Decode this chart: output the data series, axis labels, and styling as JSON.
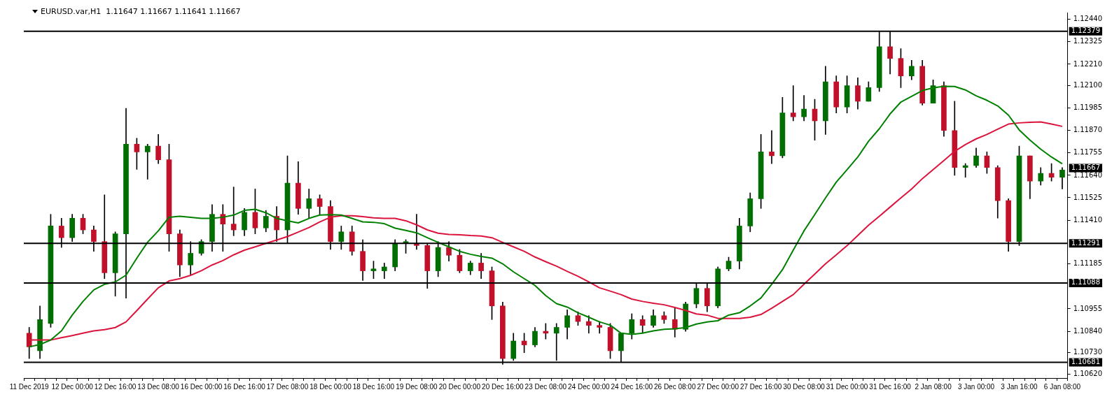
{
  "chart_data": {
    "type": "candlestick",
    "title": "EURUSD.var,H1  1.11647 1.11667 1.11641 1.11667",
    "categories": [
      "11 Dec 2019",
      null,
      null,
      null,
      "12 Dec 00:00",
      null,
      null,
      null,
      "12 Dec 16:00",
      null,
      null,
      null,
      "13 Dec 08:00",
      null,
      null,
      null,
      "16 Dec 00:00",
      null,
      null,
      null,
      "16 Dec 16:00",
      null,
      null,
      null,
      "17 Dec 08:00",
      null,
      null,
      null,
      "18 Dec 00:00",
      null,
      null,
      null,
      "18 Dec 16:00",
      null,
      null,
      null,
      "19 Dec 08:00",
      null,
      null,
      null,
      "20 Dec 00:00",
      null,
      null,
      null,
      "20 Dec 16:00",
      null,
      null,
      null,
      "23 Dec 08:00",
      null,
      null,
      null,
      "24 Dec 00:00",
      null,
      null,
      null,
      "24 Dec 16:00",
      null,
      null,
      null,
      "26 Dec 08:00",
      null,
      null,
      null,
      "27 Dec 00:00",
      null,
      null,
      null,
      "27 Dec 16:00",
      null,
      null,
      null,
      "30 Dec 08:00",
      null,
      null,
      null,
      "31 Dec 00:00",
      null,
      null,
      null,
      "31 Dec 16:00",
      null,
      null,
      null,
      "2 Jan 08:00",
      null,
      null,
      null,
      "3 Jan 00:00",
      null,
      null,
      null,
      "3 Jan 16:00",
      null,
      null,
      null,
      "6 Jan 08:00"
    ],
    "ohlc": [
      [
        1.1083,
        1.1086,
        1.107,
        1.1076
      ],
      [
        1.1074,
        1.1097,
        1.107,
        1.109
      ],
      [
        1.1088,
        1.1144,
        1.1086,
        1.1138
      ],
      [
        1.1138,
        1.1142,
        1.1127,
        1.1132
      ],
      [
        1.1132,
        1.1144,
        1.113,
        1.1142
      ],
      [
        1.1142,
        1.1144,
        1.1134,
        1.1136
      ],
      [
        1.1136,
        1.1138,
        1.1125,
        1.113
      ],
      [
        1.113,
        1.1154,
        1.1111,
        1.1114
      ],
      [
        1.1114,
        1.1135,
        1.1102,
        1.1134
      ],
      [
        1.1134,
        1.11984,
        1.1101,
        1.118
      ],
      [
        1.118,
        1.1183,
        1.1167,
        1.1176
      ],
      [
        1.1176,
        1.118,
        1.1162,
        1.1179
      ],
      [
        1.1179,
        1.1185,
        1.117,
        1.1172
      ],
      [
        1.1172,
        1.118,
        1.1125,
        1.1134
      ],
      [
        1.1134,
        1.1136,
        1.1112,
        1.1118
      ],
      [
        1.1118,
        1.113,
        1.1113,
        1.1124
      ],
      [
        1.1124,
        1.1131,
        1.1123,
        1.113
      ],
      [
        1.113,
        1.1149,
        1.1125,
        1.1144
      ],
      [
        1.1144,
        1.1149,
        1.1125,
        1.1139
      ],
      [
        1.1139,
        1.1158,
        1.1133,
        1.1136
      ],
      [
        1.1136,
        1.1147,
        1.1133,
        1.1145
      ],
      [
        1.1145,
        1.1157,
        1.1134,
        1.1137
      ],
      [
        1.1137,
        1.1146,
        1.1135,
        1.1143
      ],
      [
        1.1143,
        1.1148,
        1.113,
        1.1136
      ],
      [
        1.1136,
        1.1174,
        1.1129,
        1.116
      ],
      [
        1.116,
        1.1171,
        1.1144,
        1.1147
      ],
      [
        1.1147,
        1.1157,
        1.1142,
        1.1152
      ],
      [
        1.1152,
        1.1154,
        1.1144,
        1.1148
      ],
      [
        1.1148,
        1.1151,
        1.1126,
        1.113
      ],
      [
        1.113,
        1.1138,
        1.1126,
        1.1135
      ],
      [
        1.1135,
        1.1138,
        1.1123,
        1.1125
      ],
      [
        1.1125,
        1.1131,
        1.111,
        1.1115
      ],
      [
        1.1115,
        1.112,
        1.1111,
        1.1116
      ],
      [
        1.1115,
        1.1119,
        1.1111,
        1.1117
      ],
      [
        1.1117,
        1.1131,
        1.1115,
        1.1129
      ],
      [
        1.1129,
        1.1131,
        1.1124,
        1.113
      ],
      [
        1.1129,
        1.1144,
        1.1126,
        1.1128
      ],
      [
        1.1128,
        1.1129,
        1.1106,
        1.1115
      ],
      [
        1.1115,
        1.113,
        1.1112,
        1.1127
      ],
      [
        1.1127,
        1.113,
        1.112,
        1.1123
      ],
      [
        1.1123,
        1.1126,
        1.1114,
        1.1115
      ],
      [
        1.1115,
        1.112,
        1.1113,
        1.1119
      ],
      [
        1.1119,
        1.1124,
        1.1111,
        1.1115
      ],
      [
        1.1115,
        1.1117,
        1.109,
        1.1097
      ],
      [
        1.1097,
        1.1099,
        1.1067,
        1.107
      ],
      [
        1.107,
        1.1083,
        1.1069,
        1.1079
      ],
      [
        1.1079,
        1.1083,
        1.1073,
        1.1077
      ],
      [
        1.1077,
        1.1086,
        1.1076,
        1.1084
      ],
      [
        1.1084,
        1.1088,
        1.108,
        1.1083
      ],
      [
        1.1083,
        1.1088,
        1.1069,
        1.1086
      ],
      [
        1.1086,
        1.1095,
        1.108,
        1.1092
      ],
      [
        1.1092,
        1.1094,
        1.1087,
        1.1089
      ],
      [
        1.1089,
        1.1092,
        1.1083,
        1.1087
      ],
      [
        1.1087,
        1.1089,
        1.1083,
        1.1086
      ],
      [
        1.1086,
        1.1088,
        1.107,
        1.1074
      ],
      [
        1.1074,
        1.1083,
        1.1068,
        1.1083
      ],
      [
        1.1083,
        1.1093,
        1.108,
        1.109
      ],
      [
        1.109,
        1.1092,
        1.1083,
        1.1087
      ],
      [
        1.1087,
        1.1095,
        1.1086,
        1.1092
      ],
      [
        1.1092,
        1.1094,
        1.1088,
        1.109
      ],
      [
        1.109,
        1.1096,
        1.1081,
        1.1085
      ],
      [
        1.1085,
        1.1099,
        1.1084,
        1.1098
      ],
      [
        1.1098,
        1.1109,
        1.1096,
        1.1106
      ],
      [
        1.1106,
        1.1109,
        1.1094,
        1.1097
      ],
      [
        1.1097,
        1.1117,
        1.1096,
        1.1116
      ],
      [
        1.1116,
        1.1122,
        1.1115,
        1.112
      ],
      [
        1.112,
        1.1142,
        1.1116,
        1.1138
      ],
      [
        1.1138,
        1.1155,
        1.1135,
        1.1152
      ],
      [
        1.1152,
        1.1185,
        1.1147,
        1.1176
      ],
      [
        1.1176,
        1.1187,
        1.117,
        1.1174
      ],
      [
        1.1174,
        1.1204,
        1.1173,
        1.1196
      ],
      [
        1.1196,
        1.121,
        1.1192,
        1.1194
      ],
      [
        1.1194,
        1.1205,
        1.1192,
        1.1198
      ],
      [
        1.1198,
        1.1203,
        1.1182,
        1.1192
      ],
      [
        1.1192,
        1.122,
        1.1185,
        1.1212
      ],
      [
        1.1212,
        1.1215,
        1.1196,
        1.1199
      ],
      [
        1.1199,
        1.1215,
        1.1196,
        1.121
      ],
      [
        1.121,
        1.1214,
        1.1198,
        1.1202
      ],
      [
        1.1202,
        1.1212,
        1.1202,
        1.1209
      ],
      [
        1.1209,
        1.12379,
        1.1207,
        1.123
      ],
      [
        1.123,
        1.1238,
        1.1216,
        1.1224
      ],
      [
        1.1224,
        1.1229,
        1.1209,
        1.1215
      ],
      [
        1.1215,
        1.1223,
        1.1213,
        1.122
      ],
      [
        1.122,
        1.1223,
        1.12,
        1.1201
      ],
      [
        1.1201,
        1.1213,
        1.1201,
        1.121
      ],
      [
        1.121,
        1.1212,
        1.1184,
        1.1187
      ],
      [
        1.1187,
        1.1202,
        1.1164,
        1.1168
      ],
      [
        1.1168,
        1.117,
        1.1163,
        1.1169
      ],
      [
        1.1169,
        1.1178,
        1.1168,
        1.1174
      ],
      [
        1.1174,
        1.1176,
        1.1165,
        1.1168
      ],
      [
        1.1168,
        1.1169,
        1.1142,
        1.1151
      ],
      [
        1.1151,
        1.1152,
        1.1125,
        1.113
      ],
      [
        1.113,
        1.1179,
        1.1128,
        1.1174
      ],
      [
        1.1174,
        1.1174,
        1.1152,
        1.1161
      ],
      [
        1.1161,
        1.1168,
        1.1159,
        1.1165
      ],
      [
        1.1165,
        1.117,
        1.1161,
        1.1163
      ],
      [
        1.1163,
        1.1168,
        1.1157,
        1.11667
      ]
    ],
    "series": [
      {
        "type": "line",
        "color": "#008000",
        "values": [
          1.1076,
          1.10772,
          1.10795,
          1.10842,
          1.10923,
          1.10993,
          1.11052,
          1.11081,
          1.11093,
          1.11128,
          1.11215,
          1.11297,
          1.11355,
          1.11425,
          1.1143,
          1.11425,
          1.11419,
          1.11419,
          1.11425,
          1.11436,
          1.1146,
          1.11466,
          1.11448,
          1.11419,
          1.11407,
          1.11396,
          1.11419,
          1.11436,
          1.11438,
          1.11436,
          1.11419,
          1.11401,
          1.11399,
          1.11392,
          1.11369,
          1.11357,
          1.11345,
          1.1132,
          1.11296,
          1.11273,
          1.1125,
          1.11235,
          1.11224,
          1.11215,
          1.11186,
          1.11145,
          1.1111,
          1.11075,
          1.11023,
          1.10982,
          1.10964,
          1.10935,
          1.10912,
          1.10888,
          1.10871,
          1.1083,
          1.10824,
          1.1083,
          1.10842,
          1.1085,
          1.10853,
          1.10859,
          1.10877,
          1.10888,
          1.10894,
          1.10923,
          1.10935,
          1.1097,
          1.11011,
          1.11081,
          1.11156,
          1.11256,
          1.11355,
          1.11439,
          1.11524,
          1.11605,
          1.11669,
          1.11734,
          1.11815,
          1.11879,
          1.11955,
          1.12016,
          1.12045,
          1.12075,
          1.12089,
          1.12097,
          1.12096,
          1.12078,
          1.12048,
          1.12025,
          1.11996,
          1.11949,
          1.11873,
          1.11821,
          1.11774,
          1.11734,
          1.11699
        ]
      },
      {
        "type": "line",
        "color": "#dc143c",
        "values": [
          1.10795,
          1.10795,
          1.10795,
          1.10807,
          1.10818,
          1.1083,
          1.10842,
          1.10848,
          1.10859,
          1.10888,
          1.10946,
          1.11005,
          1.11063,
          1.11098,
          1.1111,
          1.11127,
          1.11151,
          1.1118,
          1.11203,
          1.11232,
          1.11256,
          1.11273,
          1.11291,
          1.11308,
          1.11326,
          1.11349,
          1.11372,
          1.11401,
          1.11425,
          1.11433,
          1.11433,
          1.11428,
          1.11422,
          1.11419,
          1.11419,
          1.11407,
          1.11386,
          1.1136,
          1.11343,
          1.11337,
          1.11335,
          1.11331,
          1.11329,
          1.1132,
          1.11296,
          1.11273,
          1.1125,
          1.11221,
          1.11197,
          1.11174,
          1.11147,
          1.11122,
          1.11093,
          1.11063,
          1.11046,
          1.11028,
          1.11005,
          1.10993,
          1.10984,
          1.10976,
          1.10962,
          1.10947,
          1.10929,
          1.10923,
          1.10906,
          1.10906,
          1.10906,
          1.10912,
          1.10926,
          1.10958,
          1.10993,
          1.11028,
          1.11081,
          1.11133,
          1.11186,
          1.11232,
          1.11279,
          1.11331,
          1.11384,
          1.1143,
          1.11477,
          1.11524,
          1.1157,
          1.11623,
          1.11669,
          1.11716,
          1.11763,
          1.11798,
          1.11827,
          1.1185,
          1.11877,
          1.11903,
          1.11909,
          1.11912,
          1.11914,
          1.11903,
          1.11891
        ]
      }
    ],
    "ylim": [
      1.106,
      1.12475
    ],
    "yticks": [
      {
        "value": 1.1244,
        "label": "1.12440"
      },
      1.12325,
      {
        "value": 1.1221,
        "label": "1.12210"
      },
      {
        "value": 1.121,
        "label": "1.12100"
      },
      1.11985,
      {
        "value": 1.1187,
        "label": "1.11870"
      },
      1.11755,
      {
        "value": 1.1164,
        "label": "1.11640"
      },
      1.11525,
      {
        "value": 1.1141,
        "label": "1.11410"
      },
      1.11185,
      1.10955,
      {
        "value": 1.1084,
        "label": "1.10840"
      },
      {
        "value": 1.1073,
        "label": "1.10730"
      },
      {
        "value": 1.1062,
        "label": "1.10620"
      }
    ],
    "ref_lines": [
      {
        "axis": "y",
        "value": 1.12379,
        "label": "1.12379",
        "color": "#000000"
      },
      {
        "axis": "y",
        "value": 1.11291,
        "label": "1.11291",
        "color": "#000000"
      },
      {
        "axis": "y",
        "value": 1.11088,
        "label": "1.11088",
        "color": "#000000"
      },
      {
        "axis": "y",
        "value": 1.10681,
        "label": "1.10681",
        "color": "#000000"
      }
    ],
    "annotations": [
      "1.11667"
    ],
    "grid": false,
    "legend": false
  }
}
